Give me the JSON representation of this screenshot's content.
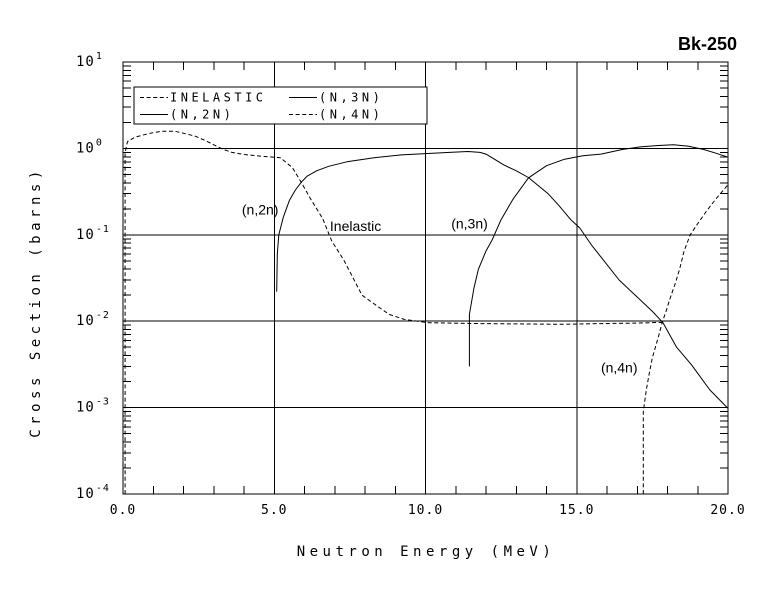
{
  "title": "Bk-250",
  "colors": {
    "foreground": "#000000",
    "background": "#ffffff"
  },
  "axes": {
    "x": {
      "label": "Neutron Energy (MeV)",
      "min": 0,
      "max": 20,
      "minor_step": 1,
      "gridlines": [
        5,
        10,
        15
      ],
      "ticks": [
        {
          "value": 0,
          "label": "0.0"
        },
        {
          "value": 5,
          "label": "5.0"
        },
        {
          "value": 10,
          "label": "10.0"
        },
        {
          "value": 15,
          "label": "15.0"
        },
        {
          "value": 20,
          "label": "20.0"
        }
      ]
    },
    "y": {
      "label": "Cross Section (barns)",
      "scale": "log",
      "min_exponent": -4,
      "max_exponent": 1,
      "gridline_exponents": [
        0,
        -1,
        -2,
        -3
      ],
      "ticks": [
        {
          "exponent": 1,
          "base": "10",
          "exp_label": "1"
        },
        {
          "exponent": 0,
          "base": "10",
          "exp_label": "0"
        },
        {
          "exponent": -1,
          "base": "10",
          "exp_label": "-1"
        },
        {
          "exponent": -2,
          "base": "10",
          "exp_label": "-2"
        },
        {
          "exponent": -3,
          "base": "10",
          "exp_label": "-3"
        },
        {
          "exponent": -4,
          "base": "10",
          "exp_label": "-4"
        }
      ]
    }
  },
  "legend": {
    "items": [
      {
        "label": "INELASTIC",
        "line_style": "dashed"
      },
      {
        "label": "(N,2N)",
        "line_style": "solid"
      },
      {
        "label": "(N,3N)",
        "line_style": "solid"
      },
      {
        "label": "(N,4N)",
        "line_style": "dashed"
      }
    ]
  },
  "annotations": [
    {
      "text": "(n,2n)",
      "x_mev": 3.93,
      "y_barns": 0.196
    },
    {
      "text": "Inelastic",
      "x_mev": 6.84,
      "y_barns": 0.127
    },
    {
      "text": "(n,3n)",
      "x_mev": 10.85,
      "y_barns": 0.135
    },
    {
      "text": "(n,4n)",
      "x_mev": 15.8,
      "y_barns": 0.0029
    }
  ],
  "chart_data": {
    "type": "line",
    "title": "Bk-250",
    "xlabel": "Neutron Energy (MeV)",
    "ylabel": "Cross Section (barns)",
    "x_range": [
      0,
      20
    ],
    "y_range": [
      0.0001,
      10
    ],
    "y_scale": "log",
    "grid": true,
    "legend_position": "top-left-inside",
    "series": [
      {
        "name": "Inelastic",
        "line_style": "dashed",
        "points": [
          [
            0.07,
            0.0001
          ],
          [
            0.07,
            0.9
          ],
          [
            0.15,
            1.2
          ],
          [
            0.4,
            1.35
          ],
          [
            0.9,
            1.5
          ],
          [
            1.3,
            1.58
          ],
          [
            1.7,
            1.58
          ],
          [
            2.0,
            1.5
          ],
          [
            2.4,
            1.38
          ],
          [
            2.7,
            1.24
          ],
          [
            3.0,
            1.1
          ],
          [
            3.3,
            0.98
          ],
          [
            3.6,
            0.9
          ],
          [
            4.0,
            0.85
          ],
          [
            4.6,
            0.81
          ],
          [
            5.2,
            0.78
          ],
          [
            5.6,
            0.6
          ],
          [
            5.9,
            0.4
          ],
          [
            6.2,
            0.26
          ],
          [
            6.6,
            0.155
          ],
          [
            6.9,
            0.085
          ],
          [
            7.3,
            0.051
          ],
          [
            7.6,
            0.032
          ],
          [
            7.9,
            0.02
          ],
          [
            8.4,
            0.015
          ],
          [
            8.8,
            0.012
          ],
          [
            9.3,
            0.0105
          ],
          [
            10.1,
            0.0096
          ],
          [
            11.5,
            0.0094
          ],
          [
            13.0,
            0.0093
          ],
          [
            14.5,
            0.0092
          ],
          [
            16.0,
            0.0094
          ],
          [
            17.0,
            0.0095
          ],
          [
            17.9,
            0.0097
          ]
        ]
      },
      {
        "name": "(n,2n)",
        "line_style": "solid",
        "points": [
          [
            5.08,
            0.022
          ],
          [
            5.1,
            0.06
          ],
          [
            5.15,
            0.1
          ],
          [
            5.3,
            0.16
          ],
          [
            5.5,
            0.25
          ],
          [
            5.7,
            0.33
          ],
          [
            5.9,
            0.41
          ],
          [
            6.1,
            0.48
          ],
          [
            6.4,
            0.55
          ],
          [
            6.8,
            0.62
          ],
          [
            7.4,
            0.7
          ],
          [
            8.3,
            0.78
          ],
          [
            9.2,
            0.84
          ],
          [
            10.0,
            0.87
          ],
          [
            10.8,
            0.9
          ],
          [
            11.4,
            0.92
          ],
          [
            11.8,
            0.9
          ],
          [
            12.0,
            0.86
          ],
          [
            12.6,
            0.64
          ],
          [
            13.0,
            0.55
          ],
          [
            13.4,
            0.46
          ],
          [
            14.05,
            0.3
          ],
          [
            14.4,
            0.22
          ],
          [
            14.8,
            0.15
          ],
          [
            15.1,
            0.12
          ],
          [
            15.5,
            0.075
          ],
          [
            15.9,
            0.05
          ],
          [
            16.4,
            0.03
          ],
          [
            17.0,
            0.019
          ],
          [
            17.5,
            0.013
          ],
          [
            17.85,
            0.0096
          ],
          [
            18.3,
            0.005
          ],
          [
            18.8,
            0.0031
          ],
          [
            19.4,
            0.0016
          ],
          [
            20.0,
            0.00098
          ]
        ]
      },
      {
        "name": "(n,3n)",
        "line_style": "solid",
        "points": [
          [
            11.45,
            0.003
          ],
          [
            11.45,
            0.012
          ],
          [
            11.6,
            0.024
          ],
          [
            11.75,
            0.04
          ],
          [
            12.0,
            0.065
          ],
          [
            12.2,
            0.087
          ],
          [
            12.5,
            0.15
          ],
          [
            12.9,
            0.26
          ],
          [
            13.4,
            0.455
          ],
          [
            14.0,
            0.63
          ],
          [
            14.6,
            0.75
          ],
          [
            15.2,
            0.82
          ],
          [
            15.8,
            0.86
          ],
          [
            16.5,
            0.97
          ],
          [
            17.1,
            1.04
          ],
          [
            17.7,
            1.08
          ],
          [
            18.2,
            1.1
          ],
          [
            18.7,
            1.06
          ],
          [
            19.2,
            0.97
          ],
          [
            19.6,
            0.88
          ],
          [
            20.0,
            0.79
          ]
        ]
      },
      {
        "name": "(n,4n)",
        "line_style": "dashed",
        "points": [
          [
            17.2,
            0.0001
          ],
          [
            17.2,
            0.0009
          ],
          [
            17.3,
            0.0016
          ],
          [
            17.4,
            0.0025
          ],
          [
            17.5,
            0.0038
          ],
          [
            17.6,
            0.005
          ],
          [
            17.7,
            0.0066
          ],
          [
            17.82,
            0.0096
          ],
          [
            17.95,
            0.013
          ],
          [
            18.1,
            0.019
          ],
          [
            18.25,
            0.027
          ],
          [
            18.4,
            0.04
          ],
          [
            18.55,
            0.065
          ],
          [
            18.75,
            0.1
          ],
          [
            19.0,
            0.135
          ],
          [
            19.3,
            0.19
          ],
          [
            19.6,
            0.26
          ],
          [
            19.85,
            0.33
          ],
          [
            20.0,
            0.38
          ]
        ]
      }
    ]
  }
}
